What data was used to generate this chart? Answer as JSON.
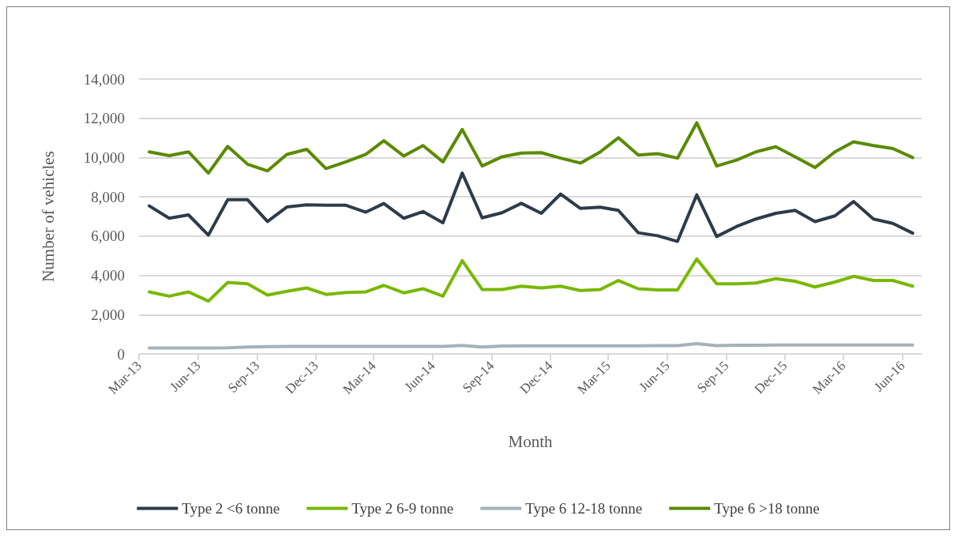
{
  "chart_data": {
    "type": "line",
    "xlabel": "Month",
    "ylabel": "Number of vehicles",
    "x": [
      "2013-03-17",
      "2013-04-17",
      "2013-05-17",
      "2013-06-17",
      "2013-07-17",
      "2013-08-17",
      "2013-09-17",
      "2013-10-17",
      "2013-11-17",
      "2013-12-17",
      "2014-01-17",
      "2014-02-17",
      "2014-03-17",
      "2014-04-17",
      "2014-05-17",
      "2014-06-17",
      "2014-07-17",
      "2014-08-17",
      "2014-09-17",
      "2014-10-17",
      "2014-11-17",
      "2014-12-17",
      "2015-01-17",
      "2015-02-17",
      "2015-03-17",
      "2015-04-17",
      "2015-05-17",
      "2015-06-17",
      "2015-07-17",
      "2015-08-17",
      "2015-09-17",
      "2015-10-17",
      "2015-11-17",
      "2015-12-17",
      "2016-01-17",
      "2016-02-17",
      "2016-03-17",
      "2016-04-17",
      "2016-05-17",
      "2016-06-17"
    ],
    "series": [
      {
        "name": "Type 2 <6 tonne",
        "color": "#2e3b4a",
        "values": [
          7540,
          6910,
          7080,
          6050,
          7850,
          7850,
          6740,
          7480,
          7590,
          7570,
          7570,
          7220,
          7660,
          6910,
          7250,
          6680,
          9210,
          6930,
          7190,
          7670,
          7160,
          8140,
          7410,
          7470,
          7310,
          6170,
          6020,
          5730,
          8100,
          5980,
          6490,
          6870,
          7160,
          7310,
          6740,
          7030,
          7760,
          6870,
          6650,
          6150
        ]
      },
      {
        "name": "Type 2 6-9 tonne",
        "color": "#78b800",
        "values": [
          3160,
          2940,
          3160,
          2690,
          3640,
          3570,
          3000,
          3190,
          3360,
          3030,
          3130,
          3160,
          3490,
          3110,
          3320,
          2940,
          4750,
          3280,
          3280,
          3450,
          3360,
          3450,
          3230,
          3280,
          3740,
          3320,
          3260,
          3260,
          4840,
          3570,
          3570,
          3610,
          3830,
          3700,
          3410,
          3660,
          3950,
          3740,
          3740,
          3450
        ]
      },
      {
        "name": "Type 6 12-18 tonne",
        "color": "#a5b1bb",
        "values": [
          300,
          300,
          300,
          300,
          310,
          350,
          370,
          380,
          380,
          380,
          380,
          380,
          380,
          380,
          380,
          380,
          430,
          350,
          400,
          410,
          410,
          410,
          410,
          410,
          410,
          410,
          420,
          420,
          520,
          420,
          440,
          440,
          450,
          450,
          450,
          450,
          450,
          450,
          450,
          450
        ]
      },
      {
        "name": "Type 6 >18 tonne",
        "color": "#5a8a00",
        "values": [
          10290,
          10100,
          10290,
          9210,
          10570,
          9660,
          9320,
          10160,
          10420,
          9440,
          9780,
          10160,
          10860,
          10080,
          10610,
          9780,
          11430,
          9570,
          10040,
          10230,
          10250,
          9970,
          9720,
          10290,
          11010,
          10130,
          10200,
          9970,
          11770,
          9570,
          9870,
          10290,
          10550,
          10040,
          9490,
          10290,
          10800,
          10610,
          10460,
          10000
        ]
      }
    ],
    "xlim": [
      "2013-03-01",
      "2016-07-01"
    ],
    "xticks": [
      {
        "value": "2013-03-01",
        "label": "Mar-13"
      },
      {
        "value": "2013-06-01",
        "label": "Jun-13"
      },
      {
        "value": "2013-09-01",
        "label": "Sep-13"
      },
      {
        "value": "2013-12-01",
        "label": "Dec-13"
      },
      {
        "value": "2014-03-01",
        "label": "Mar-14"
      },
      {
        "value": "2014-06-01",
        "label": "Jun-14"
      },
      {
        "value": "2014-09-01",
        "label": "Sep-14"
      },
      {
        "value": "2014-12-01",
        "label": "Dec-14"
      },
      {
        "value": "2015-03-01",
        "label": "Mar-15"
      },
      {
        "value": "2015-06-01",
        "label": "Jun-15"
      },
      {
        "value": "2015-09-01",
        "label": "Sep-15"
      },
      {
        "value": "2015-12-01",
        "label": "Dec-15"
      },
      {
        "value": "2016-03-01",
        "label": "Mar-16"
      },
      {
        "value": "2016-06-01",
        "label": "Jun-16"
      }
    ],
    "ylim": [
      0,
      14000
    ],
    "yticks": [
      {
        "value": 0,
        "label": "0"
      },
      {
        "value": 2000,
        "label": "2,000"
      },
      {
        "value": 4000,
        "label": "4,000"
      },
      {
        "value": 6000,
        "label": "6,000"
      },
      {
        "value": 8000,
        "label": "8,000"
      },
      {
        "value": 10000,
        "label": "10,000"
      },
      {
        "value": 12000,
        "label": "12,000"
      },
      {
        "value": 14000,
        "label": "14,000"
      }
    ],
    "grid": "y",
    "legend": "bottom",
    "marker": "none",
    "line_style": "solid"
  }
}
